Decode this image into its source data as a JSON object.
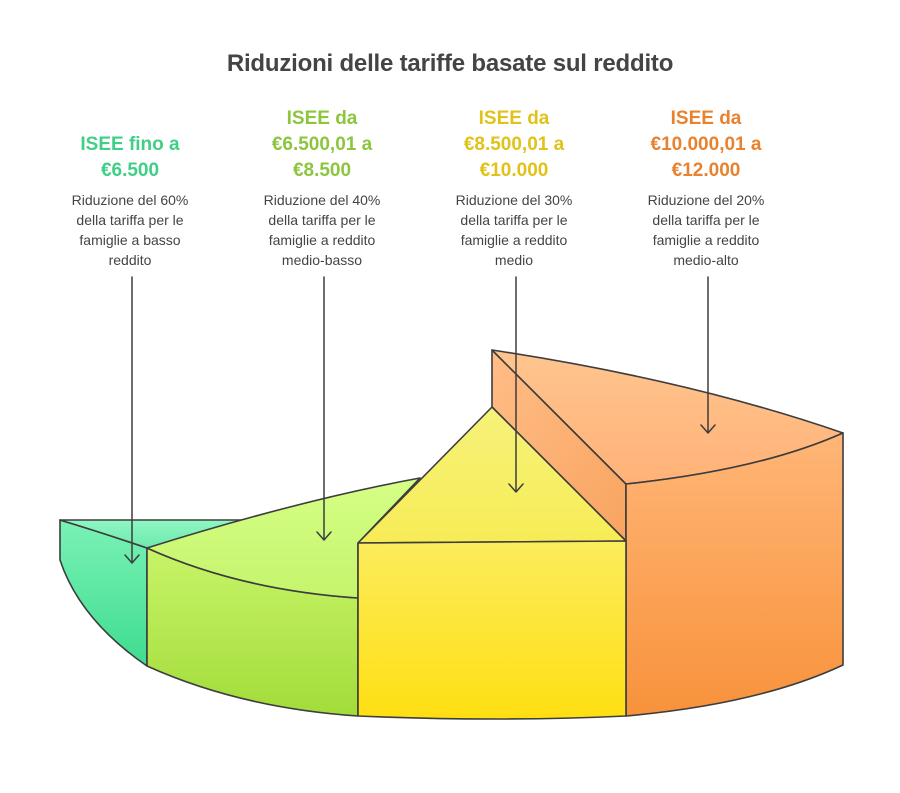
{
  "title": "Riduzioni delle tariffe basate sul reddito",
  "colors": {
    "band1": "#3fcf86",
    "band2": "#8cc63f",
    "band3": "#e1c21a",
    "band4": "#e8822f",
    "text": "#444444",
    "outline": "#3d3d3d"
  },
  "segments": [
    {
      "head": [
        "ISEE fino a",
        "€6.500"
      ],
      "desc": [
        "Riduzione del 60%",
        "della tariffa per le",
        "famiglie a basso",
        "reddito"
      ]
    },
    {
      "head": [
        "ISEE da",
        "€6.500,01 a",
        "€8.500"
      ],
      "desc": [
        "Riduzione del 40%",
        "della tariffa per le",
        "famiglie a reddito",
        "medio-basso"
      ]
    },
    {
      "head": [
        "ISEE da",
        "€8.500,01 a",
        "€10.000"
      ],
      "desc": [
        "Riduzione del 30%",
        "della tariffa per le",
        "famiglie a reddito",
        "medio"
      ]
    },
    {
      "head": [
        "ISEE da",
        "€10.000,01 a",
        "€12.000"
      ],
      "desc": [
        "Riduzione del 20%",
        "della tariffa per le",
        "famiglie a reddito",
        "medio-alto"
      ]
    }
  ]
}
